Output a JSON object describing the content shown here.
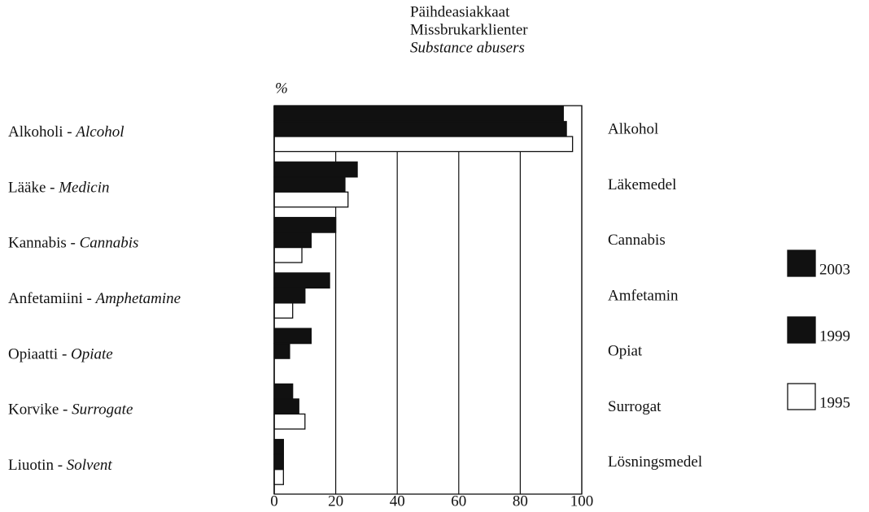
{
  "chart_data": {
    "type": "bar",
    "orientation": "horizontal",
    "title": "Päihdeasiakkaat",
    "subtitle": "Missbrukarklienter",
    "subtitle_en": "Substance abusers",
    "x_label": "%",
    "categories": [
      "Alkoholi - Alcohol",
      "Lääke - Medicin",
      "Kannabis - Cannabis",
      "Anfetamiini - Amphetamine",
      "Opiaatti - Opiate",
      "Korvike - Surrogate",
      "Liuotin - Solvent"
    ],
    "right_labels": [
      "Alkohol",
      "Läkemedel",
      "Cannabis",
      "Amfetamin",
      "Opiat",
      "Surrogat",
      "Lösningsmedel"
    ],
    "series": [
      {
        "name": "2003",
        "color": "#111111",
        "values": [
          94,
          27,
          20,
          18,
          12,
          6,
          3
        ]
      },
      {
        "name": "1999",
        "color": "#111111",
        "values": [
          95,
          23,
          12,
          10,
          5,
          8,
          3
        ]
      },
      {
        "name": "1995",
        "color": "#ffffff",
        "values": [
          97,
          24,
          9,
          6,
          null,
          10,
          3
        ]
      }
    ],
    "xlim": [
      0,
      100
    ],
    "xticks": [
      0,
      20,
      40,
      60,
      80,
      100
    ],
    "grid": true
  }
}
